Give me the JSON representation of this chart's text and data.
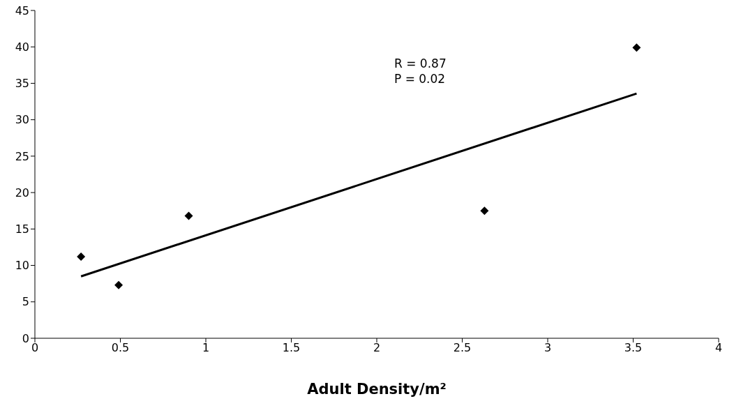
{
  "chart_data": {
    "type": "scatter",
    "xlabel": "Adult Density/m²",
    "xlim": [
      0,
      4
    ],
    "xticks": [
      0,
      0.5,
      1,
      1.5,
      2,
      2.5,
      3,
      3.5,
      4
    ],
    "ylim": [
      0,
      45
    ],
    "yticks": [
      0,
      5,
      10,
      15,
      20,
      25,
      30,
      35,
      40,
      45
    ],
    "grid": false,
    "legend": false,
    "series": [
      {
        "marker": "diamond",
        "color": "#000000",
        "x": [
          0.27,
          0.49,
          0.9,
          2.63,
          3.52
        ],
        "values": [
          11.2,
          7.3,
          16.8,
          17.5,
          39.9
        ]
      },
      {
        "type": "line",
        "marker": "none",
        "color": "#000000",
        "x": [
          0.27,
          3.52
        ],
        "values": [
          8.5,
          33.6
        ]
      }
    ],
    "annotations": [
      "R = 0.87",
      "P = 0.02"
    ]
  }
}
